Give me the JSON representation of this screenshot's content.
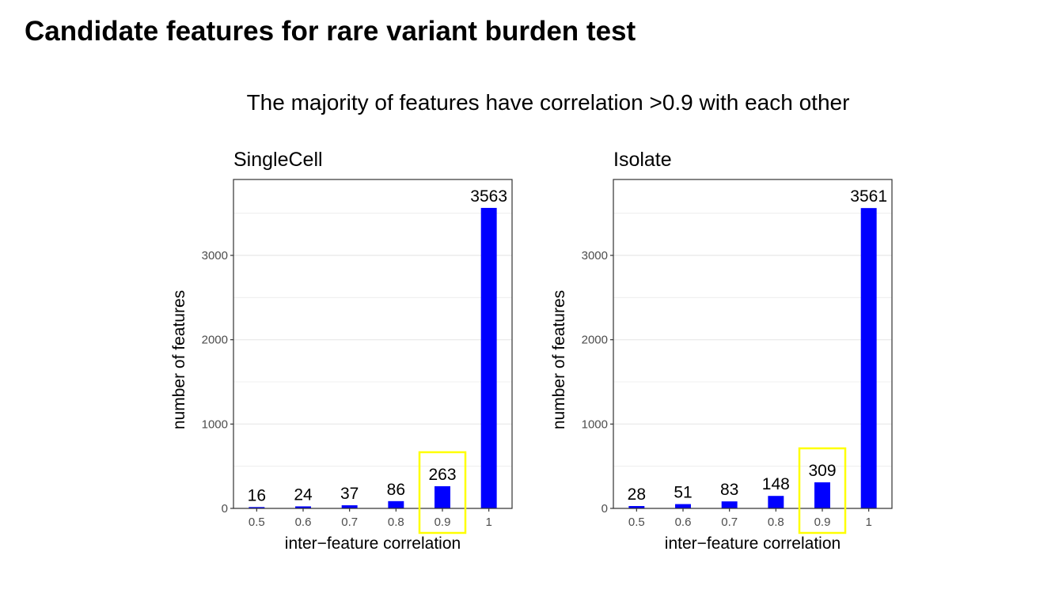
{
  "slide": {
    "title": "Candidate features for rare variant burden test",
    "subtitle": "The majority of features have correlation >0.9 with each other"
  },
  "colors": {
    "bar": "#0000ff",
    "highlight_box": "#ffff00",
    "gridline": "#ebebeb",
    "panel_border": "#333333"
  },
  "chart_data": [
    {
      "type": "bar",
      "title": "SingleCell",
      "categories": [
        "0.5",
        "0.6",
        "0.7",
        "0.8",
        "0.9",
        "1"
      ],
      "values": [
        16,
        24,
        37,
        86,
        263,
        3563
      ],
      "data_labels": [
        "16",
        "24",
        "37",
        "86",
        "263",
        "3563"
      ],
      "xlabel": "inter−feature correlation",
      "ylabel": "number of features",
      "ylim": [
        0,
        3900
      ],
      "yticks": [
        0,
        1000,
        2000,
        3000
      ],
      "ytick_labels": [
        "0",
        "1000",
        "2000",
        "3000"
      ],
      "grid": true,
      "highlighted_category": "0.9"
    },
    {
      "type": "bar",
      "title": "Isolate",
      "categories": [
        "0.5",
        "0.6",
        "0.7",
        "0.8",
        "0.9",
        "1"
      ],
      "values": [
        28,
        51,
        83,
        148,
        309,
        3561
      ],
      "data_labels": [
        "28",
        "51",
        "83",
        "148",
        "309",
        "3561"
      ],
      "xlabel": "inter−feature correlation",
      "ylabel": "number of features",
      "ylim": [
        0,
        3900
      ],
      "yticks": [
        0,
        1000,
        2000,
        3000
      ],
      "ytick_labels": [
        "0",
        "1000",
        "2000",
        "3000"
      ],
      "grid": true,
      "highlighted_category": "0.9"
    }
  ]
}
